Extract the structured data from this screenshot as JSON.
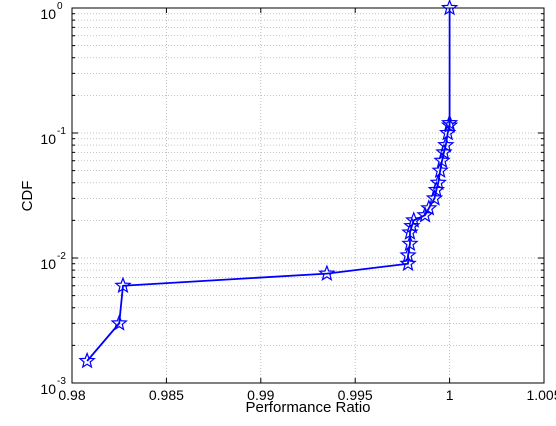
{
  "chart_data": {
    "type": "line",
    "title": "",
    "xlabel": "Performance Ratio",
    "ylabel": "CDF",
    "xlim": [
      0.98,
      1.005
    ],
    "ylim": [
      0.001,
      1
    ],
    "yscale": "log",
    "grid": true,
    "marker": "star",
    "line_color": "#0000ff",
    "x_ticks": [
      0.98,
      0.985,
      0.99,
      0.995,
      1,
      1.005
    ],
    "x_tick_labels": [
      "0.98",
      "0.985",
      "0.99",
      "0.995",
      "1",
      "1.005"
    ],
    "y_ticks": [
      {
        "value": 0.001,
        "base": "10",
        "exp": "-3"
      },
      {
        "value": 0.01,
        "base": "10",
        "exp": "-2"
      },
      {
        "value": 0.1,
        "base": "10",
        "exp": "-1"
      },
      {
        "value": 1,
        "base": "10",
        "exp": "0"
      }
    ],
    "series": [
      {
        "x": [
          0.9808,
          0.9825,
          0.9827,
          0.9935,
          0.9978,
          0.9978,
          0.9979,
          0.9979,
          0.998,
          0.9981,
          0.9987,
          0.9989,
          0.9992,
          0.9993,
          0.9994,
          0.9995,
          0.9996,
          0.9997,
          0.9998,
          0.9999,
          1.0,
          1.0,
          1.0
        ],
        "y": [
          0.0015,
          0.003,
          0.006,
          0.0075,
          0.009,
          0.0105,
          0.013,
          0.016,
          0.018,
          0.02,
          0.022,
          0.025,
          0.03,
          0.035,
          0.04,
          0.05,
          0.06,
          0.07,
          0.08,
          0.1,
          0.115,
          0.12,
          1.0
        ]
      }
    ]
  }
}
